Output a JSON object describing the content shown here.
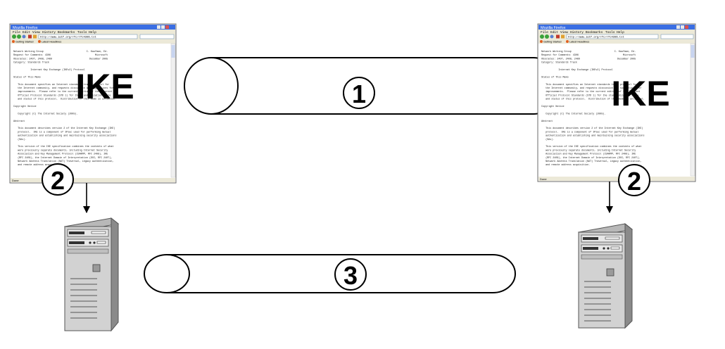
{
  "ike_left": {
    "label": "IKE",
    "window": {
      "title": "Mozilla Firefox",
      "menu": [
        "File",
        "Edit",
        "View",
        "History",
        "Bookmarks",
        "Tools",
        "Help"
      ],
      "address": "http://www.ietf.org/rfc/rfc4306.txt",
      "bookmarks": [
        "Getting Started",
        "Latest Headlines"
      ],
      "status": "Done"
    }
  },
  "ike_right": {
    "label": "IKE",
    "window": {
      "title": "Mozilla Firefox",
      "menu": [
        "File",
        "Edit",
        "View",
        "History",
        "Bookmarks",
        "Tools",
        "Help"
      ],
      "address": "http://www.ietf.org/rfc/rfc4306.txt",
      "bookmarks": [
        "Getting Started",
        "Latest Headlines"
      ],
      "status": "Done"
    }
  },
  "document_text": [
    "Network Working Group                              C. Kaufman, Ed.",
    "Request for Comments: 4306                               Microsoft",
    "Obsoletes: 2407, 2408, 2409                          December 2005",
    "Category: Standards Track",
    "",
    "            Internet Key Exchange (IKEv2) Protocol",
    "",
    "Status of This Memo",
    "",
    "   This document specifies an Internet standards track protocol for",
    "   the Internet community, and requests discussion and suggestions for",
    "   improvements.  Please refer to the current edition of the Internet",
    "   Official Protocol Standards (STD 1) for the standardization state",
    "   and status of this protocol.  Distribution of this memo is unlimited.",
    "",
    "Copyright Notice",
    "",
    "   Copyright (C) The Internet Society (2005).",
    "",
    "Abstract",
    "",
    "   This document describes version 2 of the Internet Key Exchange (IKE)",
    "   protocol.  IKE is a component of IPsec used for performing mutual",
    "   authentication and establishing and maintaining security associations",
    "   (SAs).",
    "",
    "   This version of the IKE specification combines the contents of what",
    "   were previously separate documents, including Internet Security",
    "   Association and Key Management Protocol (ISAKMP, RFC 2408), IKE",
    "   (RFC 2409), the Internet Domain of Interpretation (DOI, RFC 2407),",
    "   Network Address Translation (NAT) Traversal, Legacy authentication,",
    "   and remote address acquisition."
  ],
  "step_labels": {
    "tunnel_top": "1",
    "arrow_left": "2",
    "arrow_right": "2",
    "tunnel_bottom": "3"
  },
  "colors": {
    "stroke": "#000000",
    "titlebar": "#3a6ee3",
    "server_body": "#d2d2d2",
    "server_side": "#8a8a8a"
  }
}
